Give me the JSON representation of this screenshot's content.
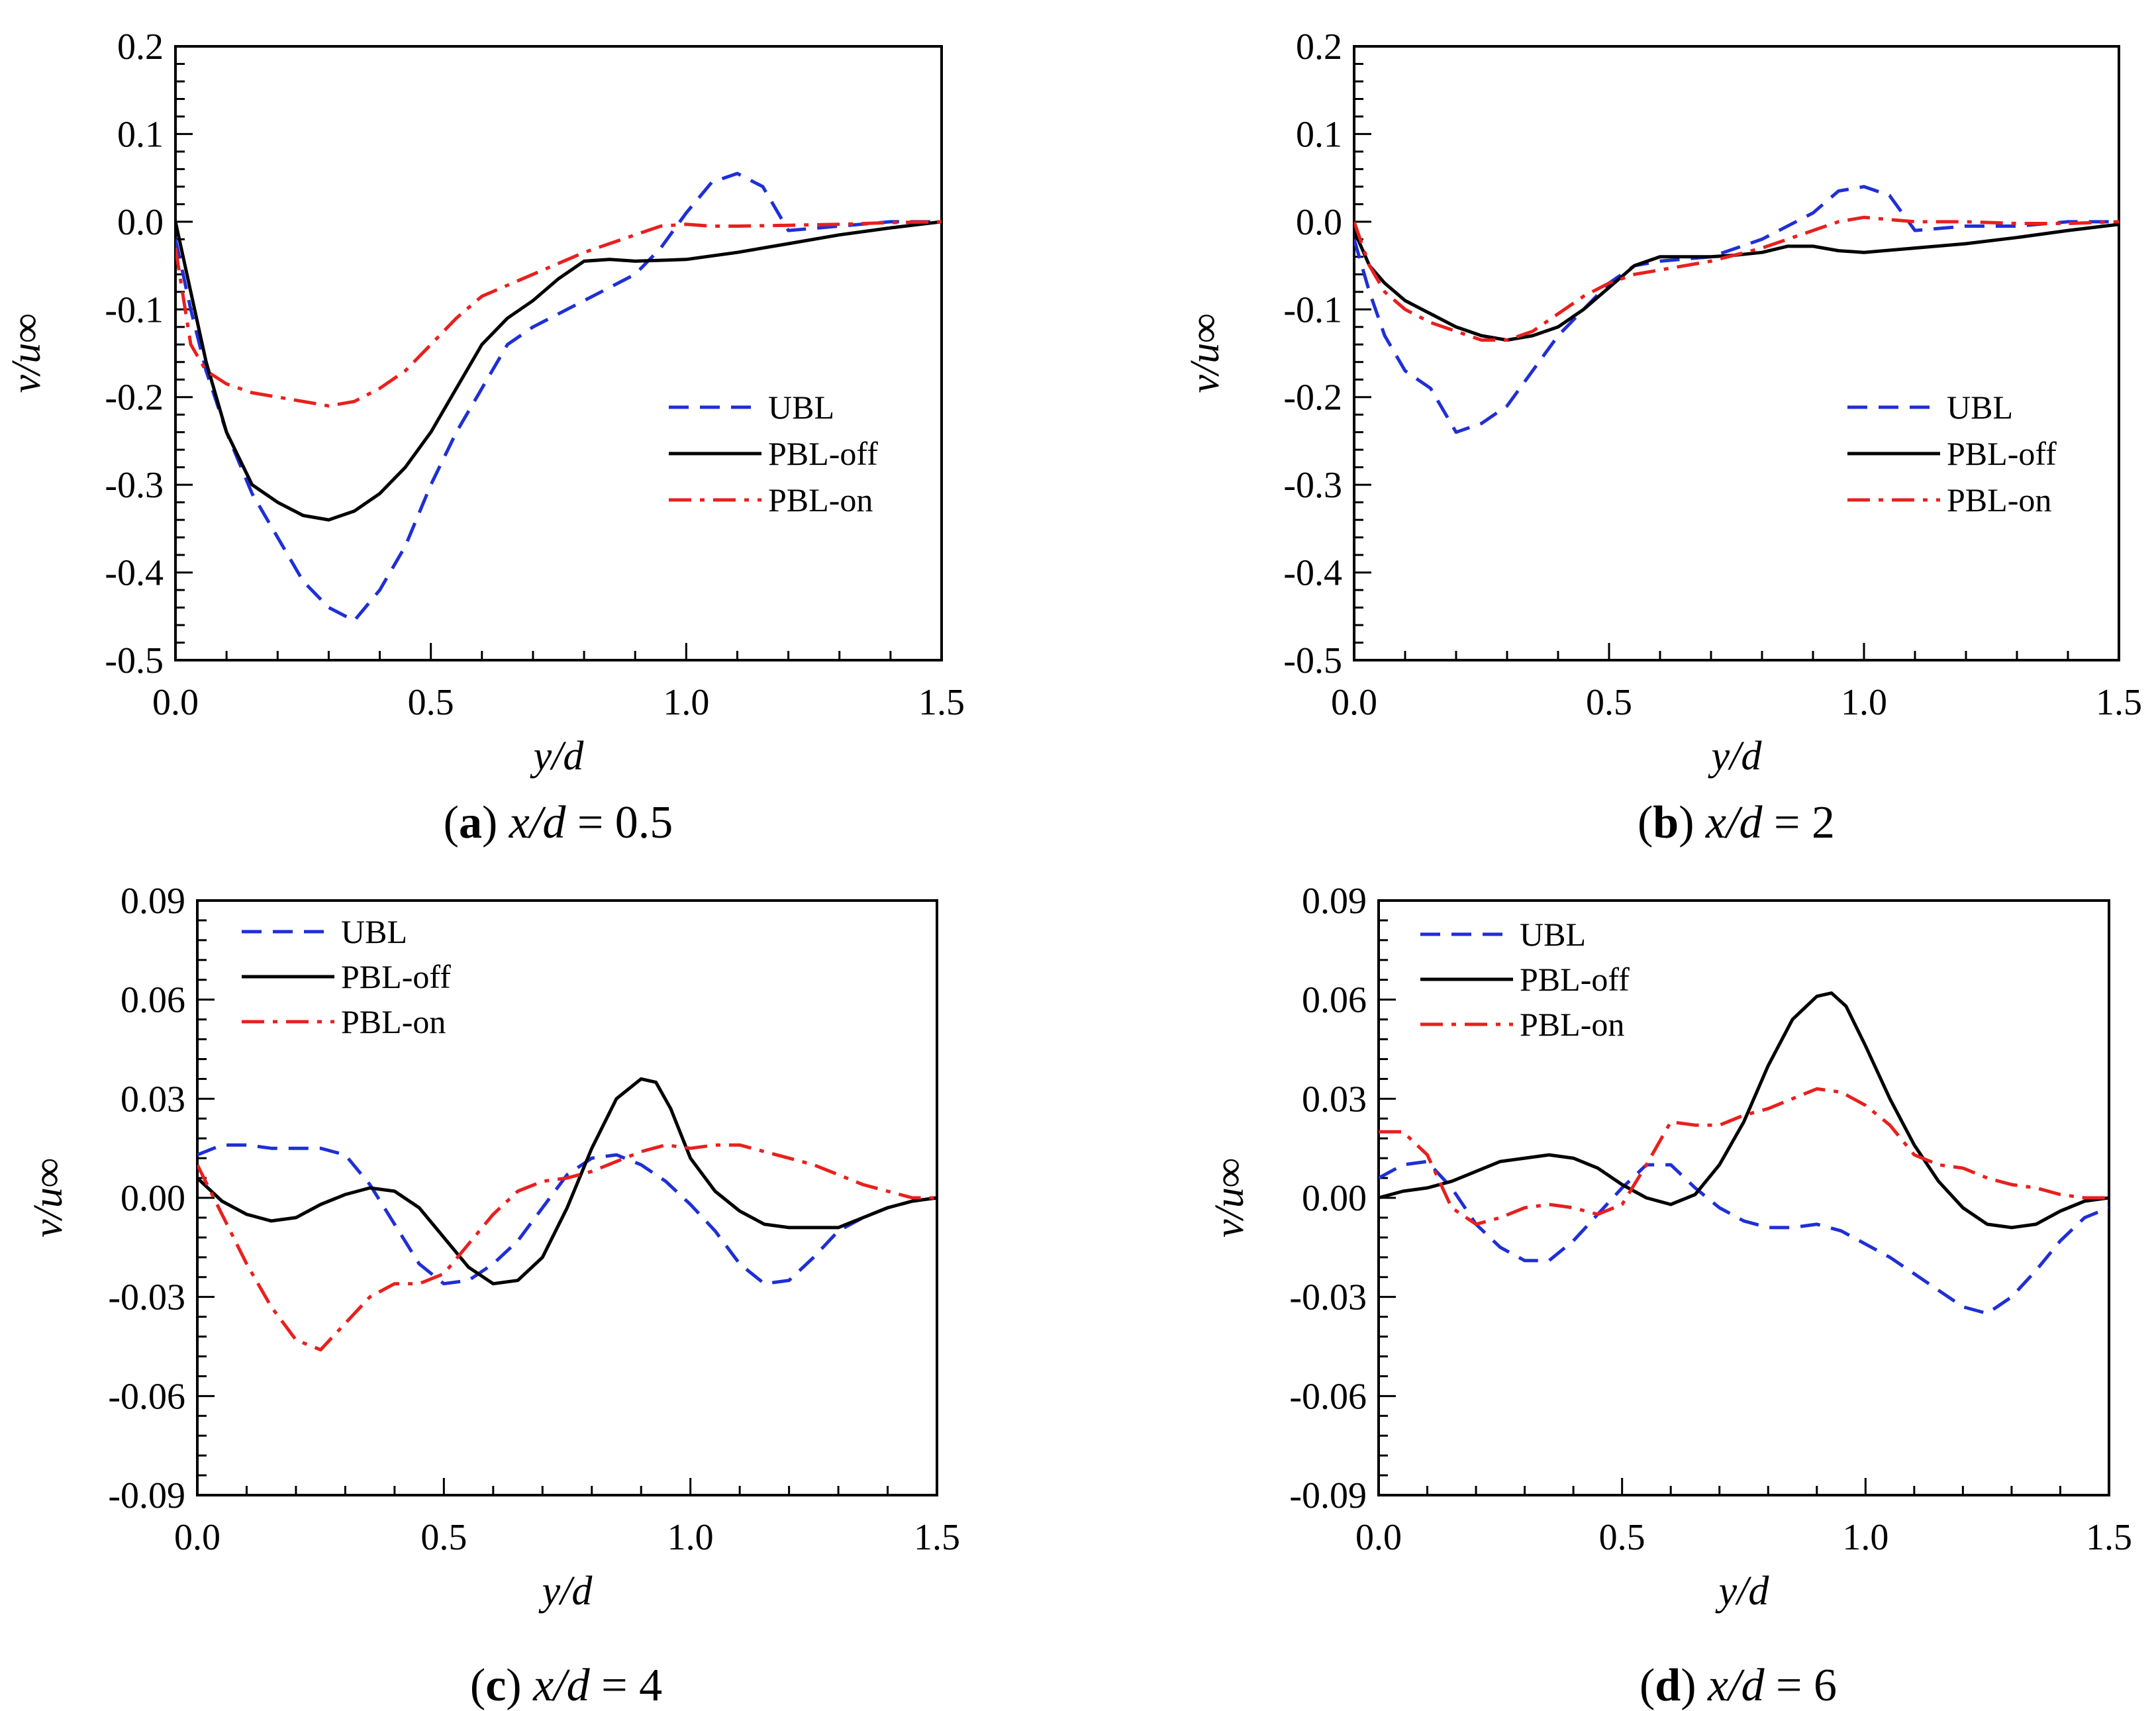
{
  "chart_data": [
    {
      "type": "line",
      "caption": {
        "letter": "a",
        "var": "x/d",
        "eq": " = 0.5"
      },
      "xlabel": "y/d",
      "ylabel": "v/u∞",
      "xlim": [
        0,
        1.5
      ],
      "ylim": [
        -0.5,
        0.2
      ],
      "xticks": [
        0.0,
        0.5,
        1.0,
        1.5
      ],
      "xtick_labels": [
        "0.0",
        "0.5",
        "1.0",
        "1.5"
      ],
      "yticks": [
        0.2,
        0.1,
        0.0,
        -0.1,
        -0.2,
        -0.3,
        -0.4,
        -0.5
      ],
      "ytick_labels": [
        "0.2",
        "0.1",
        "0.0",
        "-0.1",
        "-0.2",
        "-0.3",
        "-0.4",
        "-0.5"
      ],
      "legend_position": "right-middle",
      "series": [
        {
          "name": "UBL",
          "color": "#1f2fd6",
          "dash": "dashed",
          "x": [
            0,
            0.03,
            0.06,
            0.1,
            0.15,
            0.2,
            0.25,
            0.3,
            0.35,
            0.4,
            0.45,
            0.5,
            0.55,
            0.6,
            0.65,
            0.7,
            0.8,
            0.9,
            0.95,
            1.0,
            1.05,
            1.1,
            1.15,
            1.2,
            1.3,
            1.4,
            1.5
          ],
          "y": [
            -0.02,
            -0.1,
            -0.17,
            -0.24,
            -0.31,
            -0.36,
            -0.41,
            -0.44,
            -0.455,
            -0.42,
            -0.37,
            -0.3,
            -0.24,
            -0.19,
            -0.14,
            -0.12,
            -0.09,
            -0.06,
            -0.03,
            0.01,
            0.045,
            0.055,
            0.04,
            -0.01,
            -0.005,
            0.0,
            0.0
          ]
        },
        {
          "name": "PBL-off",
          "color": "#000000",
          "dash": "solid",
          "x": [
            0,
            0.03,
            0.06,
            0.1,
            0.15,
            0.2,
            0.25,
            0.3,
            0.35,
            0.4,
            0.45,
            0.5,
            0.55,
            0.6,
            0.65,
            0.7,
            0.75,
            0.8,
            0.85,
            0.9,
            1.0,
            1.1,
            1.2,
            1.3,
            1.4,
            1.5
          ],
          "y": [
            0.0,
            -0.08,
            -0.16,
            -0.24,
            -0.3,
            -0.32,
            -0.335,
            -0.34,
            -0.33,
            -0.31,
            -0.28,
            -0.24,
            -0.19,
            -0.14,
            -0.11,
            -0.09,
            -0.065,
            -0.045,
            -0.043,
            -0.045,
            -0.043,
            -0.035,
            -0.025,
            -0.015,
            -0.007,
            0.0
          ]
        },
        {
          "name": "PBL-on",
          "color": "#e8201e",
          "dash": "dashdot",
          "x": [
            0,
            0.03,
            0.06,
            0.1,
            0.15,
            0.2,
            0.25,
            0.3,
            0.35,
            0.4,
            0.45,
            0.5,
            0.55,
            0.6,
            0.7,
            0.8,
            0.9,
            0.95,
            1.0,
            1.05,
            1.1,
            1.2,
            1.3,
            1.4,
            1.5
          ],
          "y": [
            -0.03,
            -0.14,
            -0.17,
            -0.185,
            -0.195,
            -0.2,
            -0.205,
            -0.21,
            -0.205,
            -0.19,
            -0.17,
            -0.14,
            -0.11,
            -0.085,
            -0.06,
            -0.035,
            -0.015,
            -0.005,
            -0.003,
            -0.005,
            -0.005,
            -0.004,
            -0.003,
            -0.001,
            0.0
          ]
        }
      ]
    },
    {
      "type": "line",
      "caption": {
        "letter": "b",
        "var": "x/d",
        "eq": " = 2"
      },
      "xlabel": "y/d",
      "ylabel": "v/u∞",
      "xlim": [
        0,
        1.5
      ],
      "ylim": [
        -0.5,
        0.2
      ],
      "xticks": [
        0.0,
        0.5,
        1.0,
        1.5
      ],
      "xtick_labels": [
        "0.0",
        "0.5",
        "1.0",
        "1.5"
      ],
      "yticks": [
        0.2,
        0.1,
        0.0,
        -0.1,
        -0.2,
        -0.3,
        -0.4,
        -0.5
      ],
      "ytick_labels": [
        "0.2",
        "0.1",
        "0.0",
        "-0.1",
        "-0.2",
        "-0.3",
        "-0.4",
        "-0.5"
      ],
      "legend_position": "right-middle",
      "series": [
        {
          "name": "UBL",
          "color": "#1f2fd6",
          "dash": "dashed",
          "x": [
            0,
            0.03,
            0.06,
            0.1,
            0.15,
            0.2,
            0.25,
            0.3,
            0.35,
            0.4,
            0.45,
            0.5,
            0.55,
            0.6,
            0.7,
            0.8,
            0.9,
            0.95,
            1.0,
            1.05,
            1.1,
            1.2,
            1.3,
            1.4,
            1.5
          ],
          "y": [
            -0.02,
            -0.08,
            -0.13,
            -0.17,
            -0.19,
            -0.24,
            -0.23,
            -0.21,
            -0.17,
            -0.13,
            -0.1,
            -0.07,
            -0.05,
            -0.045,
            -0.04,
            -0.02,
            0.01,
            0.035,
            0.04,
            0.03,
            -0.01,
            -0.005,
            -0.005,
            0.0,
            0.0
          ]
        },
        {
          "name": "PBL-off",
          "color": "#000000",
          "dash": "solid",
          "x": [
            0,
            0.03,
            0.06,
            0.1,
            0.15,
            0.2,
            0.25,
            0.3,
            0.35,
            0.4,
            0.45,
            0.5,
            0.55,
            0.6,
            0.7,
            0.75,
            0.8,
            0.85,
            0.9,
            0.95,
            1.0,
            1.1,
            1.2,
            1.3,
            1.4,
            1.5
          ],
          "y": [
            -0.01,
            -0.05,
            -0.07,
            -0.09,
            -0.105,
            -0.12,
            -0.13,
            -0.135,
            -0.13,
            -0.12,
            -0.1,
            -0.075,
            -0.05,
            -0.04,
            -0.04,
            -0.038,
            -0.035,
            -0.028,
            -0.028,
            -0.033,
            -0.035,
            -0.03,
            -0.025,
            -0.018,
            -0.01,
            -0.003
          ]
        },
        {
          "name": "PBL-on",
          "color": "#e8201e",
          "dash": "dashdot",
          "x": [
            0,
            0.03,
            0.06,
            0.1,
            0.15,
            0.2,
            0.25,
            0.3,
            0.35,
            0.4,
            0.45,
            0.5,
            0.55,
            0.6,
            0.7,
            0.8,
            0.9,
            0.95,
            1.0,
            1.1,
            1.2,
            1.3,
            1.4,
            1.5
          ],
          "y": [
            0.0,
            -0.05,
            -0.08,
            -0.1,
            -0.115,
            -0.125,
            -0.135,
            -0.135,
            -0.125,
            -0.105,
            -0.085,
            -0.07,
            -0.06,
            -0.055,
            -0.045,
            -0.03,
            -0.01,
            0.0,
            0.005,
            0.0,
            0.0,
            -0.002,
            -0.002,
            0.0
          ]
        }
      ]
    },
    {
      "type": "line",
      "caption": {
        "letter": "c",
        "var": "x/d",
        "eq": " = 4"
      },
      "xlabel": "y/d",
      "ylabel": "v/u∞",
      "xlim": [
        0,
        1.5
      ],
      "ylim": [
        -0.09,
        0.09
      ],
      "xticks": [
        0.0,
        0.5,
        1.0,
        1.5
      ],
      "xtick_labels": [
        "0.0",
        "0.5",
        "1.0",
        "1.5"
      ],
      "yticks": [
        0.09,
        0.06,
        0.03,
        0.0,
        -0.03,
        -0.06,
        -0.09
      ],
      "ytick_labels": [
        "0.09",
        "0.06",
        "0.03",
        "0.00",
        "-0.03",
        "-0.06",
        "-0.09"
      ],
      "legend_position": "top-left",
      "series": [
        {
          "name": "UBL",
          "color": "#1f2fd6",
          "dash": "dashed",
          "x": [
            0,
            0.05,
            0.1,
            0.15,
            0.2,
            0.25,
            0.3,
            0.35,
            0.4,
            0.45,
            0.5,
            0.55,
            0.6,
            0.65,
            0.7,
            0.75,
            0.8,
            0.85,
            0.9,
            0.95,
            1.0,
            1.05,
            1.1,
            1.15,
            1.2,
            1.25,
            1.3,
            1.35,
            1.4,
            1.45,
            1.5
          ],
          "y": [
            0.013,
            0.016,
            0.016,
            0.015,
            0.015,
            0.015,
            0.013,
            0.004,
            -0.008,
            -0.02,
            -0.026,
            -0.025,
            -0.02,
            -0.013,
            -0.003,
            0.007,
            0.012,
            0.013,
            0.01,
            0.005,
            -0.002,
            -0.01,
            -0.02,
            -0.026,
            -0.025,
            -0.018,
            -0.01,
            -0.006,
            -0.003,
            -0.001,
            0.0
          ]
        },
        {
          "name": "PBL-off",
          "color": "#000000",
          "dash": "solid",
          "x": [
            0,
            0.05,
            0.1,
            0.15,
            0.2,
            0.25,
            0.3,
            0.35,
            0.4,
            0.45,
            0.5,
            0.55,
            0.6,
            0.65,
            0.7,
            0.75,
            0.8,
            0.85,
            0.9,
            0.93,
            0.96,
            1.0,
            1.05,
            1.1,
            1.15,
            1.2,
            1.25,
            1.3,
            1.35,
            1.4,
            1.45,
            1.5
          ],
          "y": [
            0.006,
            -0.001,
            -0.005,
            -0.007,
            -0.006,
            -0.002,
            0.001,
            0.003,
            0.002,
            -0.003,
            -0.012,
            -0.021,
            -0.026,
            -0.025,
            -0.018,
            -0.003,
            0.015,
            0.03,
            0.036,
            0.035,
            0.027,
            0.012,
            0.002,
            -0.004,
            -0.008,
            -0.009,
            -0.009,
            -0.009,
            -0.006,
            -0.003,
            -0.001,
            0.0
          ]
        },
        {
          "name": "PBL-on",
          "color": "#e8201e",
          "dash": "dashdot",
          "x": [
            0,
            0.05,
            0.1,
            0.15,
            0.2,
            0.25,
            0.3,
            0.35,
            0.4,
            0.45,
            0.5,
            0.55,
            0.6,
            0.65,
            0.7,
            0.75,
            0.8,
            0.85,
            0.9,
            0.95,
            1.0,
            1.05,
            1.1,
            1.15,
            1.2,
            1.25,
            1.3,
            1.35,
            1.4,
            1.45,
            1.5
          ],
          "y": [
            0.01,
            -0.005,
            -0.02,
            -0.033,
            -0.043,
            -0.046,
            -0.038,
            -0.03,
            -0.026,
            -0.026,
            -0.023,
            -0.014,
            -0.005,
            0.002,
            0.005,
            0.006,
            0.008,
            0.011,
            0.014,
            0.016,
            0.015,
            0.016,
            0.016,
            0.014,
            0.012,
            0.01,
            0.007,
            0.004,
            0.002,
            0.0,
            0.0
          ]
        }
      ]
    },
    {
      "type": "line",
      "caption": {
        "letter": "d",
        "var": "x/d",
        "eq": " = 6"
      },
      "xlabel": "y/d",
      "ylabel": "v/u∞",
      "xlim": [
        0,
        1.5
      ],
      "ylim": [
        -0.09,
        0.09
      ],
      "xticks": [
        0.0,
        0.5,
        1.0,
        1.5
      ],
      "xtick_labels": [
        "0.0",
        "0.5",
        "1.0",
        "1.5"
      ],
      "yticks": [
        0.09,
        0.06,
        0.03,
        0.0,
        -0.03,
        -0.06,
        -0.09
      ],
      "ytick_labels": [
        "0.09",
        "0.06",
        "0.03",
        "0.00",
        "-0.03",
        "-0.06",
        "-0.09"
      ],
      "legend_position": "top-left",
      "series": [
        {
          "name": "UBL",
          "color": "#1f2fd6",
          "dash": "dashed",
          "x": [
            0,
            0.05,
            0.1,
            0.15,
            0.2,
            0.25,
            0.3,
            0.35,
            0.4,
            0.45,
            0.5,
            0.55,
            0.6,
            0.65,
            0.7,
            0.75,
            0.8,
            0.85,
            0.9,
            0.95,
            1.0,
            1.05,
            1.1,
            1.15,
            1.2,
            1.25,
            1.3,
            1.35,
            1.4,
            1.45,
            1.5
          ],
          "y": [
            0.006,
            0.01,
            0.011,
            0.003,
            -0.008,
            -0.015,
            -0.019,
            -0.019,
            -0.013,
            -0.005,
            0.003,
            0.01,
            0.01,
            0.003,
            -0.003,
            -0.007,
            -0.009,
            -0.009,
            -0.008,
            -0.01,
            -0.014,
            -0.018,
            -0.023,
            -0.028,
            -0.033,
            -0.035,
            -0.03,
            -0.022,
            -0.013,
            -0.006,
            -0.003
          ]
        },
        {
          "name": "PBL-off",
          "color": "#000000",
          "dash": "solid",
          "x": [
            0,
            0.05,
            0.1,
            0.15,
            0.2,
            0.25,
            0.3,
            0.35,
            0.4,
            0.45,
            0.5,
            0.55,
            0.6,
            0.65,
            0.7,
            0.75,
            0.8,
            0.85,
            0.9,
            0.93,
            0.96,
            1.0,
            1.05,
            1.1,
            1.15,
            1.2,
            1.25,
            1.3,
            1.35,
            1.4,
            1.45,
            1.5
          ],
          "y": [
            0.0,
            0.002,
            0.003,
            0.005,
            0.008,
            0.011,
            0.012,
            0.013,
            0.012,
            0.009,
            0.004,
            0.0,
            -0.002,
            0.001,
            0.01,
            0.023,
            0.04,
            0.054,
            0.061,
            0.062,
            0.058,
            0.046,
            0.03,
            0.016,
            0.005,
            -0.003,
            -0.008,
            -0.009,
            -0.008,
            -0.004,
            -0.001,
            0.0
          ]
        },
        {
          "name": "PBL-on",
          "color": "#e8201e",
          "dash": "dashdot",
          "x": [
            0,
            0.05,
            0.1,
            0.15,
            0.2,
            0.25,
            0.3,
            0.35,
            0.4,
            0.45,
            0.5,
            0.55,
            0.6,
            0.65,
            0.7,
            0.75,
            0.8,
            0.85,
            0.9,
            0.95,
            1.0,
            1.05,
            1.1,
            1.15,
            1.2,
            1.25,
            1.3,
            1.35,
            1.4,
            1.45,
            1.5
          ],
          "y": [
            0.02,
            0.02,
            0.013,
            -0.003,
            -0.008,
            -0.006,
            -0.003,
            -0.002,
            -0.003,
            -0.005,
            -0.002,
            0.01,
            0.023,
            0.022,
            0.022,
            0.025,
            0.027,
            0.03,
            0.033,
            0.032,
            0.028,
            0.022,
            0.013,
            0.01,
            0.009,
            0.006,
            0.004,
            0.003,
            0.001,
            0.0,
            0.0
          ]
        }
      ]
    }
  ]
}
